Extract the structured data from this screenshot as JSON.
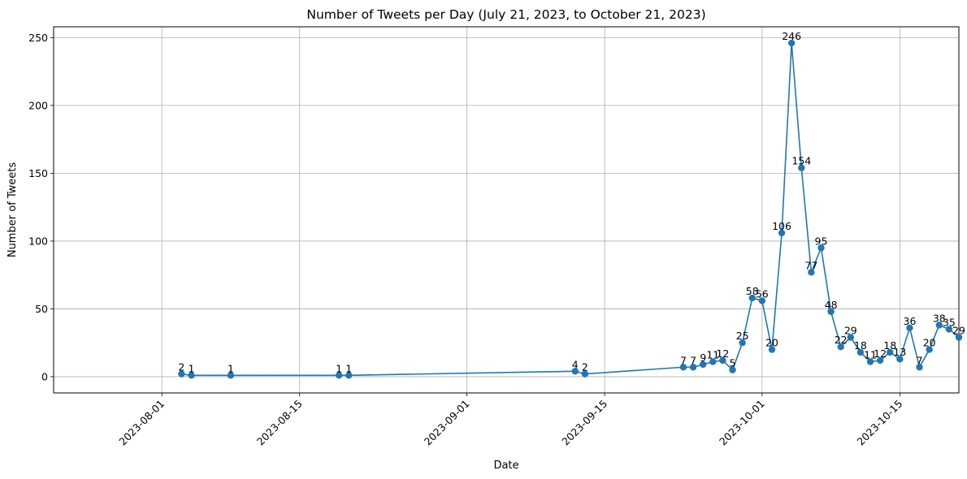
{
  "chart_data": {
    "type": "line",
    "title": "Number of Tweets per Day (July 21, 2023, to October 21, 2023)",
    "xlabel": "Date",
    "ylabel": "Number of Tweets",
    "xlim": [
      "2023-07-21",
      "2023-10-21"
    ],
    "ylim": [
      -12,
      258
    ],
    "yticks": [
      0,
      50,
      100,
      150,
      200,
      250
    ],
    "xticks": [
      "2023-08-01",
      "2023-08-15",
      "2023-09-01",
      "2023-09-15",
      "2023-10-01",
      "2023-10-15"
    ],
    "grid": true,
    "marker": "circle",
    "series_color": "#1f77b4",
    "series": [
      {
        "x": [
          "2023-08-03",
          "2023-08-04",
          "2023-08-08",
          "2023-08-19",
          "2023-08-20",
          "2023-09-12",
          "2023-09-13",
          "2023-09-23",
          "2023-09-24",
          "2023-09-25",
          "2023-09-26",
          "2023-09-27",
          "2023-09-28",
          "2023-09-29",
          "2023-09-30",
          "2023-10-01",
          "2023-10-02",
          "2023-10-03",
          "2023-10-04",
          "2023-10-05",
          "2023-10-06",
          "2023-10-07",
          "2023-10-08",
          "2023-10-09",
          "2023-10-10",
          "2023-10-11",
          "2023-10-12",
          "2023-10-13",
          "2023-10-14",
          "2023-10-15",
          "2023-10-16",
          "2023-10-17",
          "2023-10-18",
          "2023-10-19",
          "2023-10-20",
          "2023-10-21"
        ],
        "values": [
          2,
          1,
          1,
          1,
          1,
          4,
          2,
          7,
          7,
          9,
          11,
          12,
          5,
          25,
          58,
          56,
          20,
          106,
          246,
          154,
          77,
          95,
          48,
          22,
          29,
          18,
          11,
          12,
          18,
          13,
          36,
          7,
          20,
          38,
          35,
          29
        ]
      }
    ]
  }
}
